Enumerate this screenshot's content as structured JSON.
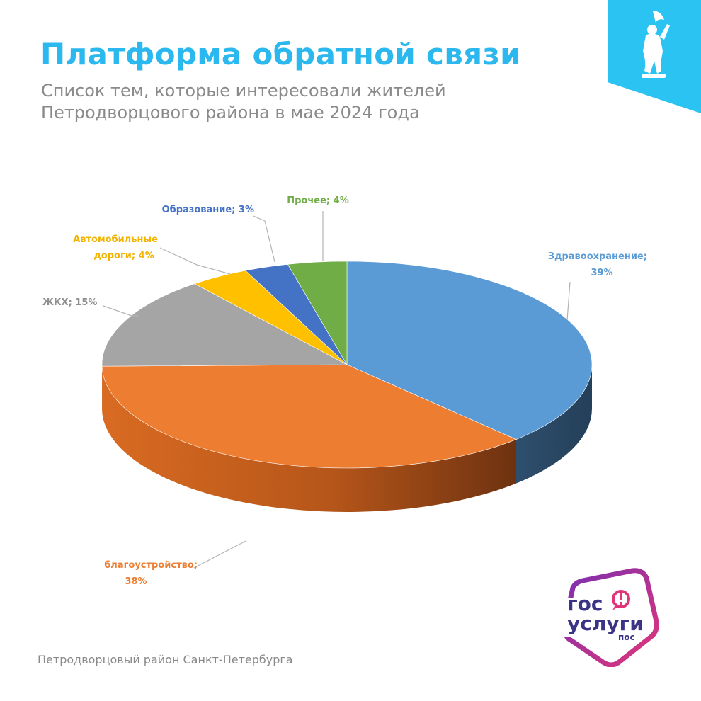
{
  "header": {
    "title": "Платформа обратной связи",
    "subtitle_line1": "Список тем, которые интересовали жителей",
    "subtitle_line2": "Петродворцового района в мае 2024 года"
  },
  "footer": {
    "text": "Петродворцовый район Санкт-Петербурга"
  },
  "logo": {
    "line1": "гос",
    "line2": "услуги",
    "line3": "пос"
  },
  "colors": {
    "title": "#2bb8ef",
    "badge": "#2bc3f2",
    "logo_gradient_start": "#7a2fb1",
    "logo_gradient_end": "#e23579"
  },
  "chart_data": {
    "type": "pie",
    "title": "",
    "style": "3d",
    "slices": [
      {
        "label": "Здравоохранение",
        "value": 39,
        "label_text": "Здравоохранение;",
        "value_text": "39%",
        "color": "#5b9bd5"
      },
      {
        "label": "благоустройство",
        "value": 38,
        "label_text": "благоустройство;",
        "value_text": "38%",
        "color": "#ed7d31"
      },
      {
        "label": "ЖКХ",
        "value": 15,
        "label_text": "ЖКХ; 15%",
        "value_text": "",
        "color": "#a5a5a5"
      },
      {
        "label": "Автомобильные дороги",
        "value": 4,
        "label_text": "Автомобильные",
        "value_text": "дороги; 4%",
        "color": "#ffc000"
      },
      {
        "label": "Образование",
        "value": 3,
        "label_text": "Образование; 3%",
        "value_text": "",
        "color": "#4472c4"
      },
      {
        "label": "Прочее",
        "value": 4,
        "label_text": "Прочее; 4%",
        "value_text": "",
        "color": "#70ad47"
      }
    ]
  }
}
